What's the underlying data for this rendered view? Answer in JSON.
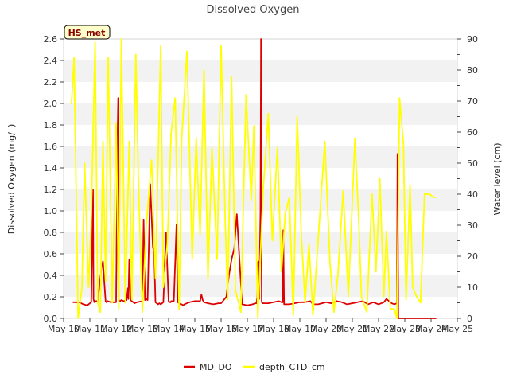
{
  "chart_data": {
    "type": "line",
    "title": "Dissolved Oxygen",
    "badge": "HS_met",
    "xlabel": "",
    "ylabel_left": "Dissolved Oxygen (mg/L)",
    "ylabel_right": "Water level (cm)",
    "x_ticks": [
      "May 10",
      "May 11",
      "May 12",
      "May 13",
      "May 14",
      "May 15",
      "May 16",
      "May 17",
      "May 18",
      "May 19",
      "May 20",
      "May 21",
      "May 22",
      "May 23",
      "May 24",
      "May 25"
    ],
    "xlim": [
      0,
      15
    ],
    "ylim_left": [
      0,
      2.6
    ],
    "yticks_left": [
      "0.0",
      "0.2",
      "0.4",
      "0.6",
      "0.8",
      "1.0",
      "1.2",
      "1.4",
      "1.6",
      "1.8",
      "2.0",
      "2.2",
      "2.4",
      "2.6"
    ],
    "ylim_right": [
      0,
      90
    ],
    "yticks_right": [
      "0",
      "10",
      "20",
      "30",
      "40",
      "50",
      "60",
      "70",
      "80",
      "90"
    ],
    "grid": "horizontal bands",
    "legend_position": "bottom-center",
    "series": [
      {
        "name": "MD_DO",
        "axis": "left",
        "color": "#dd0000",
        "x": [
          0.35,
          0.6,
          0.75,
          0.9,
          1.05,
          1.12,
          1.14,
          1.17,
          1.2,
          1.3,
          1.45,
          1.5,
          1.55,
          1.6,
          1.63,
          1.68,
          1.8,
          2.0,
          2.05,
          2.08,
          2.1,
          2.15,
          2.2,
          2.3,
          2.4,
          2.45,
          2.47,
          2.5,
          2.52,
          2.55,
          2.6,
          2.7,
          2.8,
          3.0,
          3.05,
          3.1,
          3.15,
          3.2,
          3.3,
          3.4,
          3.45,
          3.5,
          3.55,
          3.6,
          3.65,
          3.7,
          3.75,
          3.8,
          3.9,
          4.0,
          4.05,
          4.08,
          4.1,
          4.15,
          4.2,
          4.3,
          4.35,
          4.4,
          4.45,
          4.5,
          4.55,
          4.6,
          4.7,
          4.8,
          5.0,
          5.2,
          5.25,
          5.3,
          5.35,
          5.5,
          5.7,
          5.9,
          6.0,
          6.1,
          6.2,
          6.3,
          6.4,
          6.5,
          6.6,
          6.8,
          7.0,
          7.2,
          7.3,
          7.35,
          7.38,
          7.4,
          7.42,
          7.45,
          7.5,
          7.52,
          7.55,
          7.6,
          7.8,
          8.0,
          8.2,
          8.3,
          8.35,
          8.37,
          8.4,
          8.6,
          8.8,
          9.0,
          9.2,
          9.4,
          9.5,
          9.7,
          10.0,
          10.2,
          10.4,
          10.6,
          10.8,
          11.0,
          11.2,
          11.4,
          11.6,
          11.8,
          12.0,
          12.2,
          12.3,
          12.5,
          12.6,
          12.7,
          12.72,
          12.75,
          12.8,
          13.0,
          13.5,
          14.0,
          14.2
        ],
        "values": [
          0.15,
          0.15,
          0.13,
          0.12,
          0.15,
          1.2,
          0.18,
          0.15,
          0.16,
          0.16,
          0.48,
          0.53,
          0.33,
          0.16,
          0.15,
          0.16,
          0.15,
          0.15,
          1.6,
          2.05,
          0.17,
          0.16,
          0.17,
          0.16,
          0.17,
          0.28,
          0.18,
          0.55,
          0.4,
          0.17,
          0.16,
          0.14,
          0.15,
          0.16,
          0.92,
          0.17,
          0.18,
          0.17,
          1.25,
          0.67,
          0.6,
          0.15,
          0.14,
          0.13,
          0.14,
          0.13,
          0.14,
          0.15,
          0.8,
          0.16,
          0.15,
          0.15,
          0.16,
          0.16,
          0.16,
          0.87,
          0.15,
          0.14,
          0.13,
          0.13,
          0.12,
          0.13,
          0.14,
          0.15,
          0.16,
          0.16,
          0.22,
          0.17,
          0.15,
          0.14,
          0.13,
          0.14,
          0.14,
          0.17,
          0.2,
          0.4,
          0.55,
          0.65,
          0.97,
          0.13,
          0.12,
          0.13,
          0.14,
          0.14,
          0.2,
          0.52,
          0.53,
          0.18,
          1.0,
          2.6,
          0.15,
          0.14,
          0.14,
          0.15,
          0.16,
          0.15,
          0.15,
          0.82,
          0.13,
          0.13,
          0.14,
          0.15,
          0.15,
          0.16,
          0.13,
          0.13,
          0.15,
          0.14,
          0.16,
          0.15,
          0.13,
          0.14,
          0.15,
          0.16,
          0.13,
          0.15,
          0.13,
          0.15,
          0.18,
          0.14,
          0.13,
          0.14,
          1.53,
          0.0,
          0.0,
          0.0,
          0.0,
          0.0,
          0.0
        ]
      },
      {
        "name": "depth_CTD_cm",
        "axis": "right",
        "color": "#ffff00",
        "x": [
          0.3,
          0.4,
          0.55,
          0.7,
          0.8,
          0.95,
          1.05,
          1.2,
          1.3,
          1.4,
          1.5,
          1.6,
          1.7,
          1.85,
          2.0,
          2.1,
          2.2,
          2.35,
          2.5,
          2.6,
          2.75,
          2.85,
          3.0,
          3.15,
          3.35,
          3.5,
          3.7,
          3.8,
          3.95,
          4.1,
          4.25,
          4.4,
          4.5,
          4.7,
          4.9,
          5.05,
          5.2,
          5.35,
          5.5,
          5.65,
          5.85,
          6.0,
          6.15,
          6.25,
          6.4,
          6.55,
          6.75,
          6.95,
          7.15,
          7.25,
          7.4,
          7.6,
          7.8,
          7.95,
          8.15,
          8.3,
          8.45,
          8.6,
          8.75,
          8.9,
          9.05,
          9.2,
          9.35,
          9.5,
          9.65,
          9.8,
          9.95,
          10.15,
          10.3,
          10.45,
          10.65,
          10.85,
          10.95,
          11.1,
          11.25,
          11.35,
          11.55,
          11.75,
          11.9,
          12.05,
          12.2,
          12.3,
          12.45,
          12.6,
          12.7,
          12.8,
          12.95,
          13.05,
          13.2,
          13.3,
          13.45,
          13.6,
          13.75,
          13.95,
          14.1,
          14.2
        ],
        "values": [
          69,
          84,
          0,
          10,
          50,
          10,
          32,
          89,
          5,
          2,
          57,
          12,
          84,
          5,
          63,
          3,
          90,
          5,
          57,
          6,
          85,
          44,
          2,
          30,
          51,
          13,
          88,
          10,
          24,
          60,
          71,
          3,
          58,
          86,
          19,
          58,
          27,
          80,
          13,
          55,
          19,
          88,
          33,
          6,
          78,
          9,
          2,
          72,
          38,
          62,
          0,
          41,
          66,
          25,
          55,
          15,
          34,
          39,
          1,
          65,
          28,
          5,
          24,
          1,
          19,
          38,
          57,
          18,
          2,
          14,
          41,
          7,
          27,
          58,
          30,
          7,
          2,
          40,
          15,
          45,
          7,
          28,
          3,
          3,
          0,
          71,
          56,
          6,
          43,
          10,
          7,
          5,
          40,
          40,
          39,
          39
        ]
      }
    ]
  }
}
